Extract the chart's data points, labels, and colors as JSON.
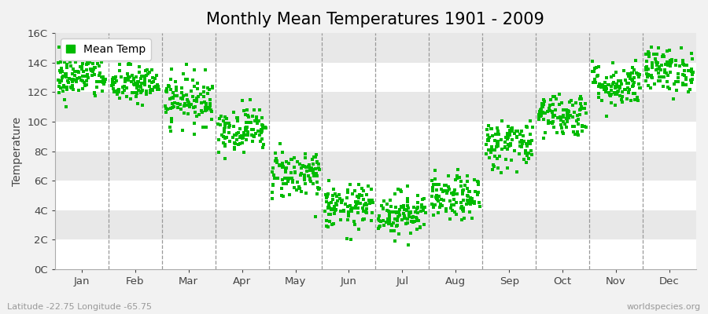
{
  "title": "Monthly Mean Temperatures 1901 - 2009",
  "ylabel": "Temperature",
  "xlabel_labels": [
    "Jan",
    "Feb",
    "Mar",
    "Apr",
    "May",
    "Jun",
    "Jul",
    "Aug",
    "Sep",
    "Oct",
    "Nov",
    "Dec"
  ],
  "ytick_labels": [
    "0C",
    "2C",
    "4C",
    "6C",
    "8C",
    "10C",
    "12C",
    "14C",
    "16C"
  ],
  "ytick_values": [
    0,
    2,
    4,
    6,
    8,
    10,
    12,
    14,
    16
  ],
  "ylim": [
    0,
    16
  ],
  "legend_label": "Mean Temp",
  "dot_color": "#00bb00",
  "background_color": "#f2f2f2",
  "plot_bg_color": "#ffffff",
  "stripe_color": "#e8e8e8",
  "title_fontsize": 15,
  "axis_fontsize": 10,
  "tick_fontsize": 9.5,
  "footnote_left": "Latitude -22.75 Longitude -65.75",
  "footnote_right": "worldspecies.org",
  "monthly_means": [
    13.0,
    12.5,
    11.5,
    9.5,
    6.5,
    4.2,
    3.8,
    4.8,
    8.5,
    10.5,
    12.5,
    13.5
  ],
  "monthly_stds": [
    0.75,
    0.65,
    0.85,
    0.75,
    0.85,
    0.75,
    0.75,
    0.75,
    0.85,
    0.75,
    0.75,
    0.75
  ],
  "n_years": 109,
  "seed": 42,
  "dot_size": 5
}
